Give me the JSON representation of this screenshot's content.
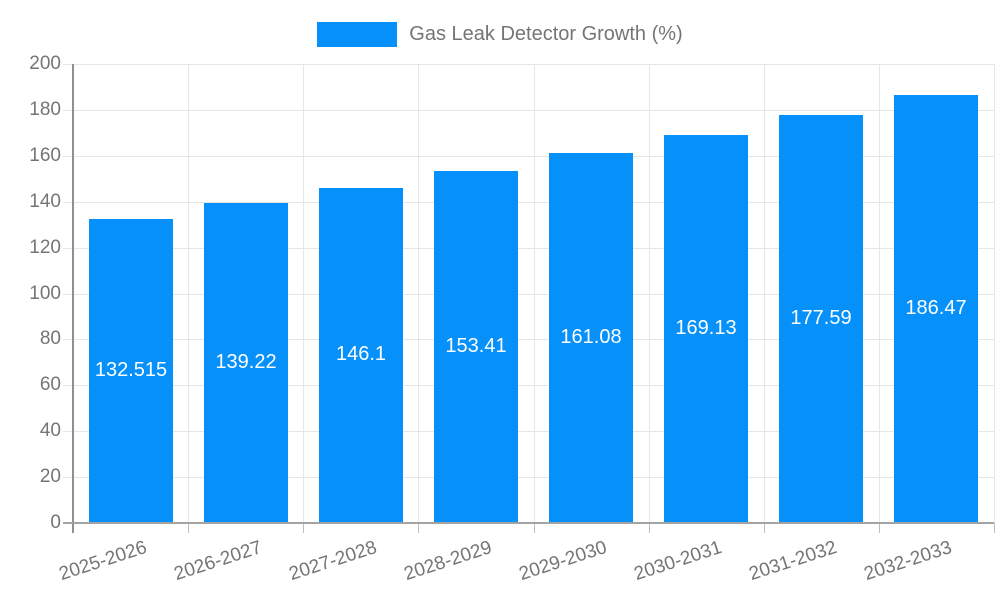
{
  "legend": {
    "label": "Gas Leak Detector Growth (%)",
    "swatch_color": "#0590fa"
  },
  "chart_data": {
    "type": "bar",
    "title": "Gas Leak Detector Growth (%)",
    "categories": [
      "2025-2026",
      "2026-2027",
      "2027-2028",
      "2028-2029",
      "2029-2030",
      "2030-2031",
      "2031-2032",
      "2032-2033"
    ],
    "values": [
      132.515,
      139.22,
      146.1,
      153.41,
      161.08,
      169.13,
      177.59,
      186.47
    ],
    "value_labels": [
      "132.515",
      "139.22",
      "146.1",
      "153.41",
      "161.08",
      "169.13",
      "177.59",
      "186.47"
    ],
    "xlabel": "",
    "ylabel": "",
    "ylim": [
      0,
      200
    ],
    "ytick_step": 20,
    "ytick_labels": [
      "0",
      "20",
      "40",
      "60",
      "80",
      "100",
      "120",
      "140",
      "160",
      "180",
      "200"
    ],
    "grid": true,
    "legend_position": "top-center",
    "bar_color": "#0590fa",
    "value_label_color": "#ffffff",
    "axis_text_color": "#757575",
    "gridline_color": "#e6e6e6",
    "axis_line_color": "#909090"
  }
}
